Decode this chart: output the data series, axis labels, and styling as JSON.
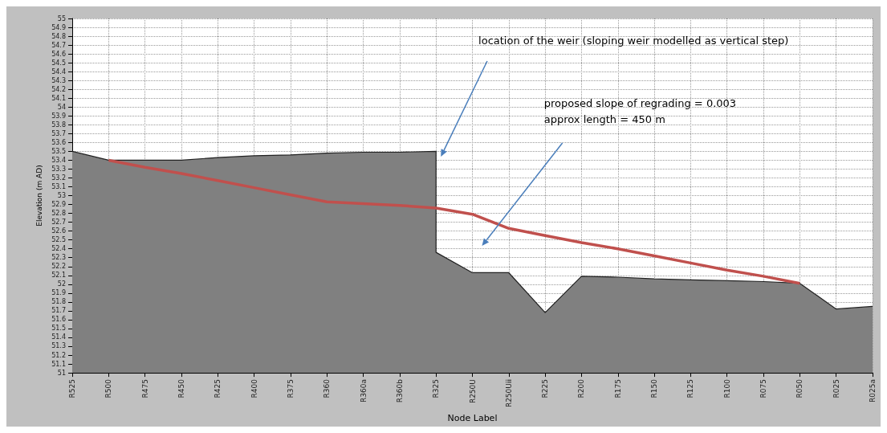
{
  "chart_data": {
    "type": "area",
    "xlabel": "Node Label",
    "ylabel": "Elevation (m AD)",
    "ylim": [
      51,
      55
    ],
    "categories": [
      "R525",
      "R500",
      "R475",
      "R450",
      "R425",
      "R400",
      "R375",
      "R360",
      "R360a",
      "R360b",
      "R325",
      "R250U",
      "R250Uii",
      "R225",
      "R200",
      "R175",
      "R150",
      "R125",
      "R100",
      "R075",
      "R050",
      "R025",
      "R025a"
    ],
    "yticks": [
      51,
      51.1,
      51.2,
      51.3,
      51.4,
      51.5,
      51.6,
      51.7,
      51.8,
      51.9,
      52,
      52.1,
      52.2,
      52.3,
      52.4,
      52.5,
      52.6,
      52.7,
      52.8,
      52.9,
      53,
      53.1,
      53.2,
      53.3,
      53.4,
      53.5,
      53.6,
      53.7,
      53.8,
      53.9,
      54,
      54.1,
      54.2,
      54.3,
      54.4,
      54.5,
      54.6,
      54.7,
      54.8,
      54.9,
      55
    ],
    "grid": true,
    "marker": "none",
    "series": [
      {
        "color": "#808080",
        "x": [
          "R525",
          "R500",
          "R475",
          "R450",
          "R425",
          "R400",
          "R375",
          "R360",
          "R360a",
          "R360b",
          "R325",
          "R325",
          "R250U",
          "R250Uii",
          "R225",
          "R200",
          "R175",
          "R150",
          "R125",
          "R100",
          "R075",
          "R050",
          "R025",
          "R025a"
        ],
        "values": [
          53.5,
          53.4,
          53.4,
          53.4,
          53.43,
          53.45,
          53.46,
          53.48,
          53.49,
          53.49,
          53.5,
          52.36,
          52.13,
          52.13,
          51.68,
          52.09,
          52.08,
          52.06,
          52.05,
          52.04,
          52.03,
          52.01,
          51.72,
          51.75
        ]
      },
      {
        "type": "line",
        "color": "#c0504d",
        "values": [
          null,
          53.4,
          53.32,
          53.25,
          53.17,
          53.09,
          53.01,
          52.93,
          52.91,
          52.89,
          52.86,
          52.79,
          52.63,
          52.55,
          52.47,
          52.4,
          52.32,
          52.24,
          52.16,
          52.09,
          52.01,
          null,
          null
        ]
      }
    ],
    "annotations": [
      "location of the weir (sloping weir modelled as vertical step)",
      "proposed slope of regrading = 0.003\napprox length = 450 m"
    ]
  }
}
